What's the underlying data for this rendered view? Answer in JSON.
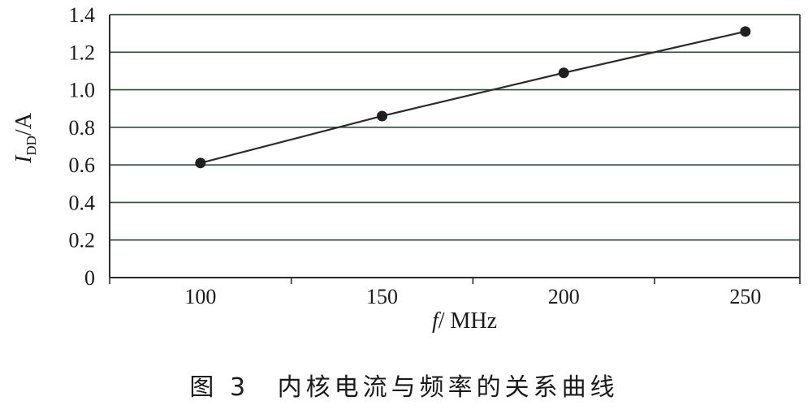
{
  "chart_data": {
    "type": "line",
    "x": [
      100,
      150,
      200,
      250
    ],
    "series": [
      {
        "values": [
          0.61,
          0.86,
          1.09,
          1.31
        ]
      }
    ],
    "xticks": [
      "100",
      "150",
      "200",
      "250"
    ],
    "yticks": [
      "0",
      "0.2",
      "0.4",
      "0.6",
      "0.8",
      "1.0",
      "1.2",
      "1.4"
    ],
    "ylim": [
      0,
      1.4
    ],
    "xlabel": {
      "prefix": "f",
      "unit": "/ MHz"
    },
    "ylabel": {
      "symbol": "I",
      "subscript": "DD",
      "unit": "/A"
    },
    "grid": "horizontal",
    "colors": {
      "line": "#2b2b2b",
      "grid": "#2f4a36",
      "marker": "#1f1f1f"
    }
  },
  "caption": {
    "figure": "图 3",
    "text": "内核电流与频率的关系曲线"
  }
}
